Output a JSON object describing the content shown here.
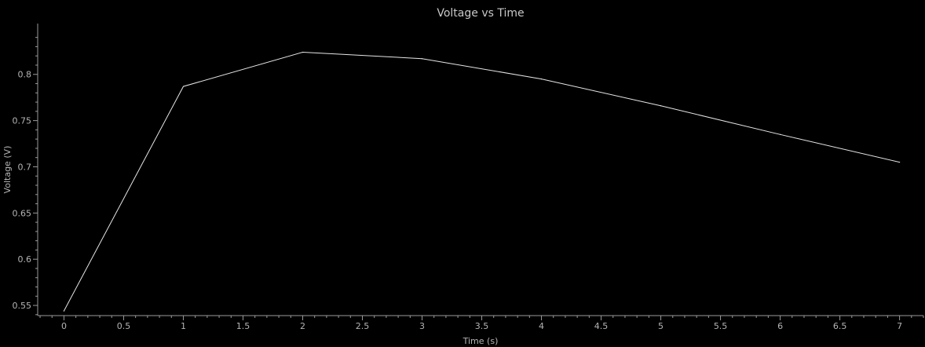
{
  "colors": {
    "background": "#000000",
    "axis": "#9a9a9a",
    "text": "#b4b4b4",
    "series": "#e6e6e6"
  },
  "chart_data": {
    "type": "line",
    "title": "Voltage vs Time",
    "xlabel": "Time (s)",
    "ylabel": "Voltage (V)",
    "xlim": [
      -0.22,
      7.2
    ],
    "ylim": [
      0.539,
      0.855
    ],
    "grid": false,
    "x_ticks": [
      0,
      0.5,
      1,
      1.5,
      2,
      2.5,
      3,
      3.5,
      4,
      4.5,
      5,
      5.5,
      6,
      6.5,
      7
    ],
    "x_tick_labels": [
      "0",
      "0.5",
      "1",
      "1.5",
      "2",
      "2.5",
      "3",
      "3.5",
      "4",
      "4.5",
      "5",
      "5.5",
      "6",
      "6.5",
      "7"
    ],
    "y_ticks": [
      0.55,
      0.6,
      0.65,
      0.7,
      0.75,
      0.8
    ],
    "y_tick_labels": [
      "0.55",
      "0.6",
      "0.65",
      "0.7",
      "0.75",
      "0.8"
    ],
    "series": [
      {
        "x": [
          0,
          1,
          2,
          3,
          4,
          5,
          6,
          7
        ],
        "values": [
          0.544,
          0.787,
          0.824,
          0.817,
          0.795,
          0.766,
          0.735,
          0.705
        ]
      }
    ]
  }
}
